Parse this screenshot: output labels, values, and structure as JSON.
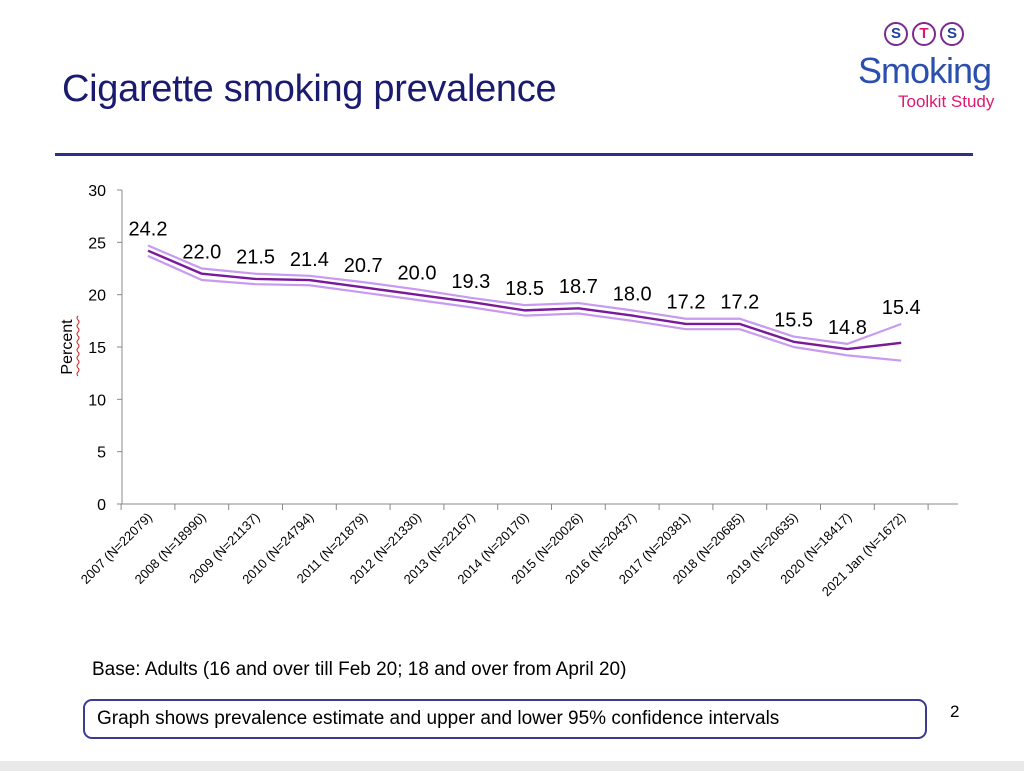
{
  "slide": {
    "title": "Cigarette smoking prevalence",
    "base_note": "Base: Adults (16 and over till Feb 20; 18 and over from April 20)",
    "ci_note": "Graph shows prevalence estimate and upper and lower 95% confidence intervals",
    "page_number": "2"
  },
  "logo": {
    "letters": [
      "S",
      "T",
      "S"
    ],
    "word": "Smoking",
    "sub": "Toolkit Study"
  },
  "colors": {
    "title": "#1a1a6e",
    "rule": "#2e2e8c",
    "estimate_line": "#7a1a9a",
    "ci_lines": "#c89af0"
  },
  "chart_data": {
    "type": "line",
    "title": "",
    "xlabel": "",
    "ylabel": "Percent",
    "ylim": [
      0,
      30
    ],
    "yticks": [
      0,
      5,
      10,
      15,
      20,
      25,
      30
    ],
    "grid": false,
    "categories": [
      "2007 (N=22079)",
      "2008 (N=18990)",
      "2009 (N=21137)",
      "2010 (N=24794)",
      "2011 (N=21879)",
      "2012 (N=21330)",
      "2013 (N=22167)",
      "2014 (N=20170)",
      "2015 (N=20026)",
      "2016 (N=20437)",
      "2017 (N=20381)",
      "2018 (N=20685)",
      "2019 (N=20635)",
      "2020 (N=18417)",
      "2021 Jan (N=1672)"
    ],
    "series": [
      {
        "name": "Upper 95% CI",
        "values": [
          24.7,
          22.5,
          22.0,
          21.8,
          21.2,
          20.5,
          19.7,
          19.0,
          19.2,
          18.5,
          17.7,
          17.7,
          16.0,
          15.3,
          17.2
        ]
      },
      {
        "name": "Prevalence estimate",
        "values": [
          24.2,
          22.0,
          21.5,
          21.4,
          20.7,
          20.0,
          19.3,
          18.5,
          18.7,
          18.0,
          17.2,
          17.2,
          15.5,
          14.8,
          15.4
        ]
      },
      {
        "name": "Lower 95% CI",
        "values": [
          23.7,
          21.4,
          21.0,
          20.9,
          20.2,
          19.5,
          18.8,
          18.0,
          18.2,
          17.5,
          16.7,
          16.7,
          15.0,
          14.2,
          13.7
        ]
      }
    ],
    "data_labels": [
      "24.2",
      "22.0",
      "21.5",
      "21.4",
      "20.7",
      "20.0",
      "19.3",
      "18.5",
      "18.7",
      "18.0",
      "17.2",
      "17.2",
      "15.5",
      "14.8",
      "15.4"
    ]
  }
}
